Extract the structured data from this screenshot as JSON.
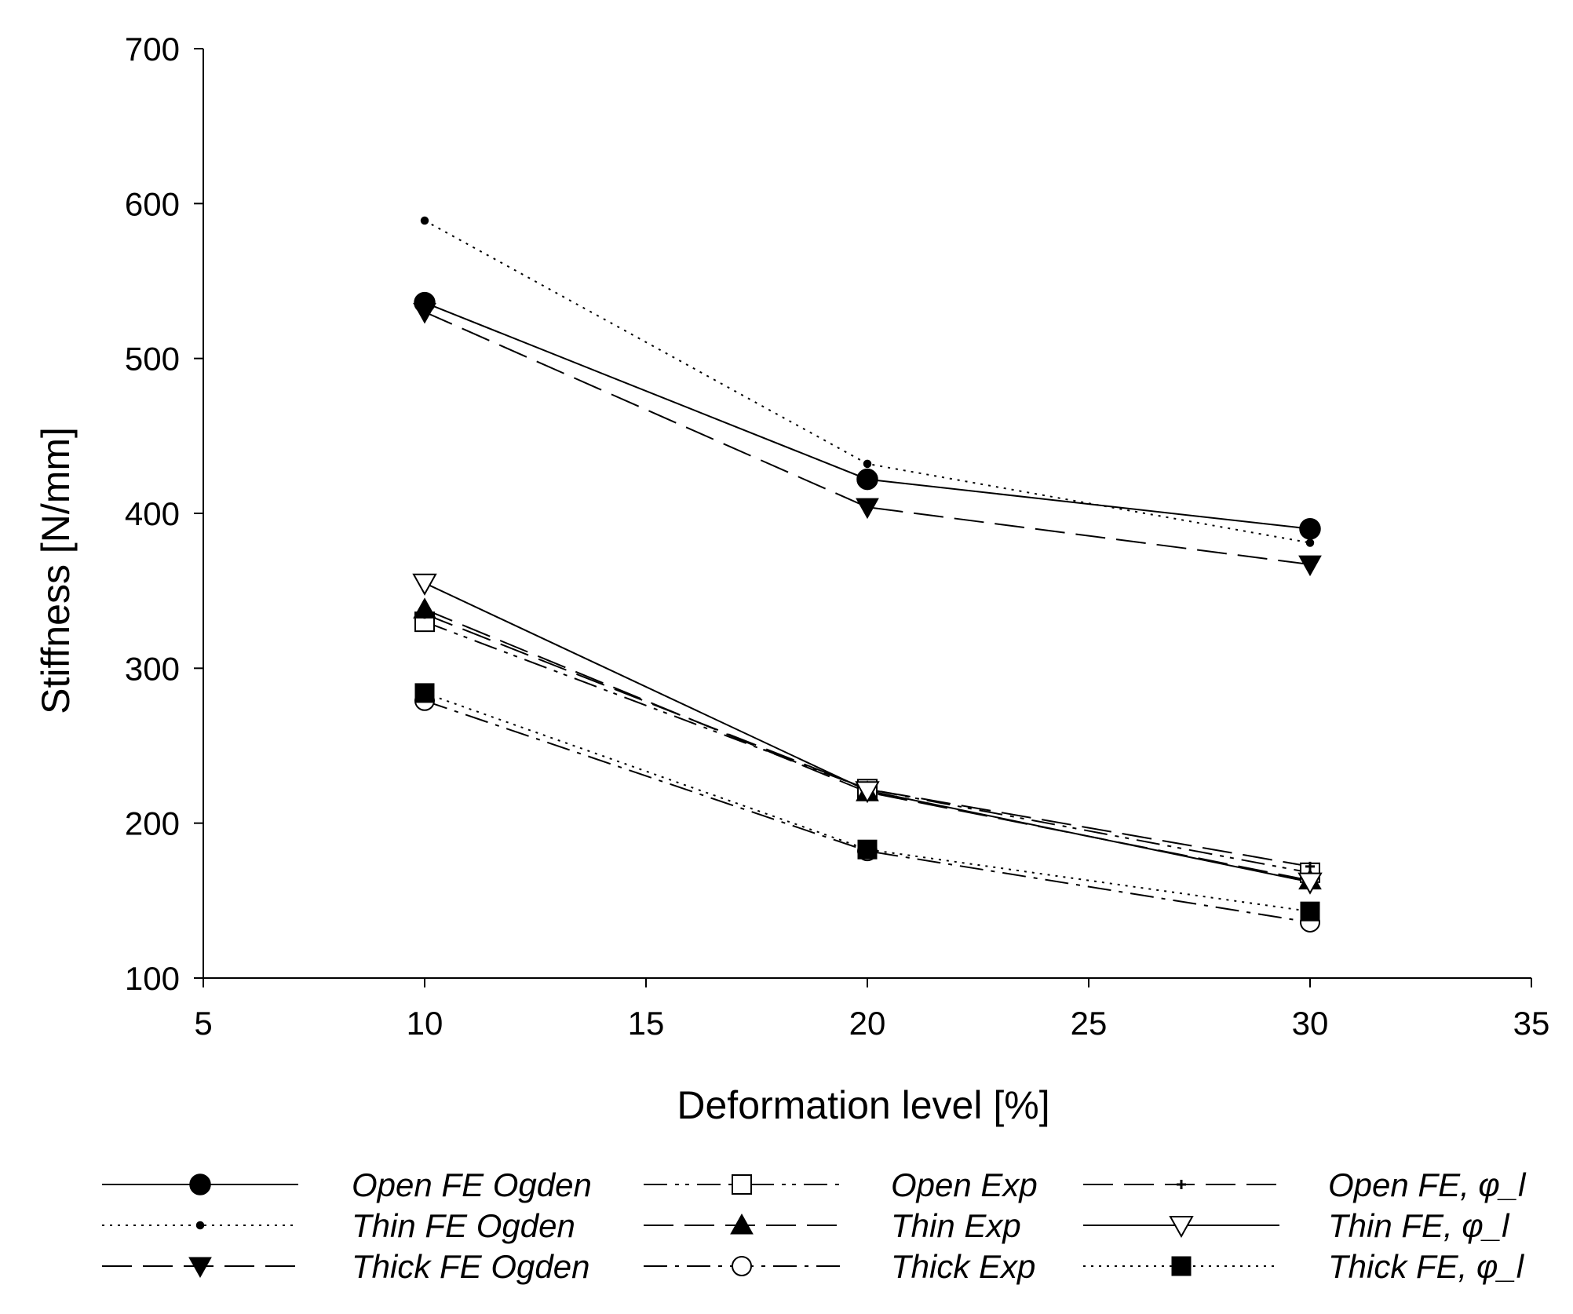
{
  "chart_data": {
    "type": "line",
    "title": "",
    "xlabel": "Deformation level [%]",
    "ylabel": "Stiffness [N/mm]",
    "xlim": [
      5,
      35
    ],
    "ylim": [
      100,
      700
    ],
    "xticks": [
      5,
      10,
      15,
      20,
      25,
      30,
      35
    ],
    "yticks": [
      100,
      200,
      300,
      400,
      500,
      600,
      700
    ],
    "x": [
      10,
      20,
      30
    ],
    "legend_position": "bottom",
    "series": [
      {
        "name": "Open FE Ogden",
        "values": [
          536,
          422,
          390
        ],
        "dash": "solid",
        "marker": "circle-filled",
        "marker_size": "large"
      },
      {
        "name": "Thin FE Ogden",
        "values": [
          589,
          432,
          381
        ],
        "dash": "dot",
        "marker": "circle-filled",
        "marker_size": "small"
      },
      {
        "name": "Thick FE Ogden",
        "values": [
          530,
          404,
          367
        ],
        "dash": "longdash",
        "marker": "triangle-down-filled",
        "marker_size": "large"
      },
      {
        "name": "Open Exp",
        "values": [
          330,
          222,
          168
        ],
        "dash": "dashdotdot",
        "marker": "square-open",
        "marker_size": "large"
      },
      {
        "name": "Thin Exp",
        "values": [
          338,
          220,
          163
        ],
        "dash": "longdash",
        "marker": "triangle-up-filled",
        "marker_size": "large"
      },
      {
        "name": "Thick Exp",
        "values": [
          279,
          182,
          136
        ],
        "dash": "dashdot",
        "marker": "circle-open",
        "marker_size": "large"
      },
      {
        "name": "Open FE, φ_l",
        "values": [
          335,
          222,
          172
        ],
        "dash": "longdash",
        "marker": "plus",
        "marker_size": "small"
      },
      {
        "name": "Thin FE, φ_l",
        "values": [
          355,
          221,
          162
        ],
        "dash": "solid",
        "marker": "triangle-down-open",
        "marker_size": "large"
      },
      {
        "name": "Thick FE, φ_l",
        "values": [
          284,
          183,
          143
        ],
        "dash": "dot",
        "marker": "square-filled",
        "marker_size": "large"
      }
    ]
  }
}
